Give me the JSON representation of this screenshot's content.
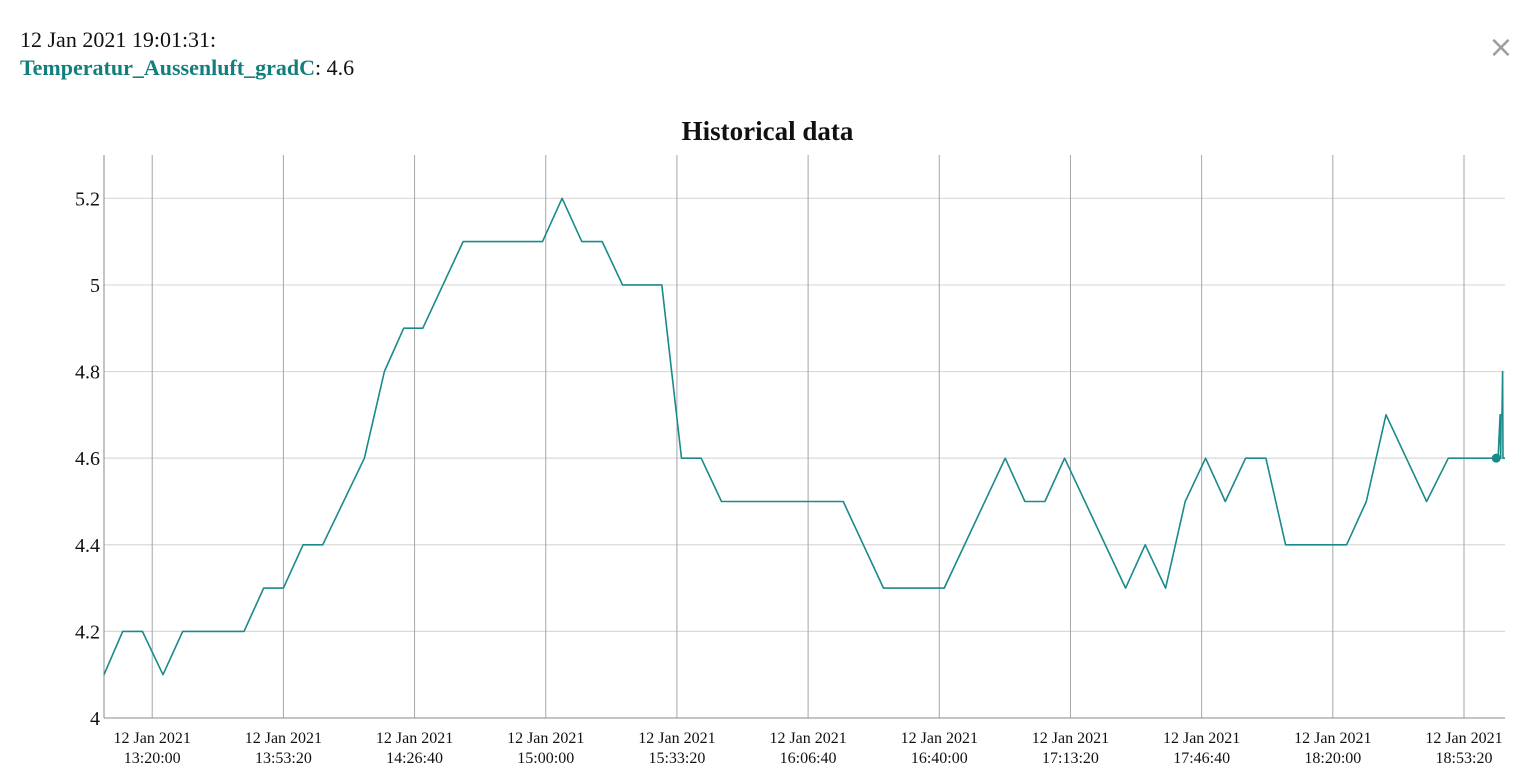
{
  "tooltip": {
    "timestamp": "12 Jan 2021 19:01:31:",
    "series_name": "Temperatur_Aussenluft_gradC",
    "separator": ":",
    "value": "4.6"
  },
  "close_button": {
    "label": "×",
    "icon": "close-icon"
  },
  "colors": {
    "series": "#1a8a8a",
    "series_name": "#137f7c",
    "grid_horizontal": "#d9d9d9",
    "grid_vertical": "#a6a6a6",
    "axis": "#888888"
  },
  "chart_data": {
    "type": "line",
    "title": "Historical data",
    "xlabel": "",
    "ylabel": "",
    "ylim": [
      4,
      5.3
    ],
    "xlim": [
      "12 Jan 2021 13:07:45",
      "12 Jan 2021 19:03:45"
    ],
    "x_ticks": [
      {
        "date": "12 Jan 2021",
        "time": "13:20:00"
      },
      {
        "date": "12 Jan 2021",
        "time": "13:53:20"
      },
      {
        "date": "12 Jan 2021",
        "time": "14:26:40"
      },
      {
        "date": "12 Jan 2021",
        "time": "15:00:00"
      },
      {
        "date": "12 Jan 2021",
        "time": "15:33:20"
      },
      {
        "date": "12 Jan 2021",
        "time": "16:06:40"
      },
      {
        "date": "12 Jan 2021",
        "time": "16:40:00"
      },
      {
        "date": "12 Jan 2021",
        "time": "17:13:20"
      },
      {
        "date": "12 Jan 2021",
        "time": "17:46:40"
      },
      {
        "date": "12 Jan 2021",
        "time": "18:20:00"
      },
      {
        "date": "12 Jan 2021",
        "time": "18:53:20"
      }
    ],
    "y_ticks": [
      "4",
      "4.2",
      "4.4",
      "4.6",
      "4.8",
      "5",
      "5.2"
    ],
    "grid": true,
    "legend": "none",
    "highlight": {
      "x": "12 Jan 2021 19:01:31",
      "y": 4.6
    },
    "series": [
      {
        "points": [
          {
            "x": "12 Jan 2021 13:07:45",
            "y": 4.1
          },
          {
            "x": "12 Jan 2021 13:12:30",
            "y": 4.2
          },
          {
            "x": "12 Jan 2021 13:17:30",
            "y": 4.2
          },
          {
            "x": "12 Jan 2021 13:22:45",
            "y": 4.1
          },
          {
            "x": "12 Jan 2021 13:27:45",
            "y": 4.2
          },
          {
            "x": "12 Jan 2021 13:43:20",
            "y": 4.2
          },
          {
            "x": "12 Jan 2021 13:48:20",
            "y": 4.3
          },
          {
            "x": "12 Jan 2021 13:53:20",
            "y": 4.3
          },
          {
            "x": "12 Jan 2021 13:58:20",
            "y": 4.4
          },
          {
            "x": "12 Jan 2021 14:03:20",
            "y": 4.4
          },
          {
            "x": "12 Jan 2021 14:13:55",
            "y": 4.6
          },
          {
            "x": "12 Jan 2021 14:19:00",
            "y": 4.8
          },
          {
            "x": "12 Jan 2021 14:23:55",
            "y": 4.9
          },
          {
            "x": "12 Jan 2021 14:28:45",
            "y": 4.9
          },
          {
            "x": "12 Jan 2021 14:39:00",
            "y": 5.1
          },
          {
            "x": "12 Jan 2021 14:59:10",
            "y": 5.1
          },
          {
            "x": "12 Jan 2021 15:04:10",
            "y": 5.2
          },
          {
            "x": "12 Jan 2021 15:09:10",
            "y": 5.1
          },
          {
            "x": "12 Jan 2021 15:14:20",
            "y": 5.1
          },
          {
            "x": "12 Jan 2021 15:19:30",
            "y": 5.0
          },
          {
            "x": "12 Jan 2021 15:29:30",
            "y": 5.0
          },
          {
            "x": "12 Jan 2021 15:34:30",
            "y": 4.6
          },
          {
            "x": "12 Jan 2021 15:39:30",
            "y": 4.6
          },
          {
            "x": "12 Jan 2021 15:44:40",
            "y": 4.5
          },
          {
            "x": "12 Jan 2021 16:15:35",
            "y": 4.5
          },
          {
            "x": "12 Jan 2021 16:25:50",
            "y": 4.3
          },
          {
            "x": "12 Jan 2021 16:41:15",
            "y": 4.3
          },
          {
            "x": "12 Jan 2021 16:56:45",
            "y": 4.6
          },
          {
            "x": "12 Jan 2021 17:01:45",
            "y": 4.5
          },
          {
            "x": "12 Jan 2021 17:06:50",
            "y": 4.5
          },
          {
            "x": "12 Jan 2021 17:11:50",
            "y": 4.6
          },
          {
            "x": "12 Jan 2021 17:27:20",
            "y": 4.3
          },
          {
            "x": "12 Jan 2021 17:32:20",
            "y": 4.4
          },
          {
            "x": "12 Jan 2021 17:37:30",
            "y": 4.3
          },
          {
            "x": "12 Jan 2021 17:42:30",
            "y": 4.5
          },
          {
            "x": "12 Jan 2021 17:47:40",
            "y": 4.6
          },
          {
            "x": "12 Jan 2021 17:52:40",
            "y": 4.5
          },
          {
            "x": "12 Jan 2021 17:57:50",
            "y": 4.6
          },
          {
            "x": "12 Jan 2021 18:03:00",
            "y": 4.6
          },
          {
            "x": "12 Jan 2021 18:08:00",
            "y": 4.4
          },
          {
            "x": "12 Jan 2021 18:23:30",
            "y": 4.4
          },
          {
            "x": "12 Jan 2021 18:28:30",
            "y": 4.5
          },
          {
            "x": "12 Jan 2021 18:33:30",
            "y": 4.7
          },
          {
            "x": "12 Jan 2021 18:43:50",
            "y": 4.5
          },
          {
            "x": "12 Jan 2021 18:49:20",
            "y": 4.6
          },
          {
            "x": "12 Jan 2021 19:02:00",
            "y": 4.6
          },
          {
            "x": "12 Jan 2021 19:02:30",
            "y": 4.7
          },
          {
            "x": "12 Jan 2021 19:02:40",
            "y": 4.6
          },
          {
            "x": "12 Jan 2021 19:02:45",
            "y": 4.7
          },
          {
            "x": "12 Jan 2021 19:03:00",
            "y": 4.7
          },
          {
            "x": "12 Jan 2021 19:03:08",
            "y": 4.8
          },
          {
            "x": "12 Jan 2021 19:03:15",
            "y": 4.6
          },
          {
            "x": "12 Jan 2021 19:03:45",
            "y": 4.6
          }
        ]
      }
    ]
  }
}
